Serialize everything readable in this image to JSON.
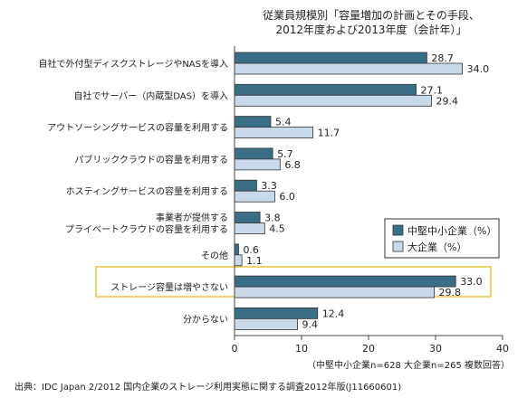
{
  "chart_data": {
    "type": "bar",
    "orientation": "horizontal",
    "title_lines": [
      "従業員規模別「容量増加の計画とその手段、",
      "2012年度および2013年度（会計年）」"
    ],
    "categories": [
      [
        "自社で外付型ディスクストレージやNASを導入"
      ],
      [
        "自社でサーバー（内蔵型DAS）を導入"
      ],
      [
        "アウトソーシングサービスの容量を利用する"
      ],
      [
        "パブリッククラウドの容量を利用する"
      ],
      [
        "ホスティングサービスの容量を利用する"
      ],
      [
        "事業者が提供する",
        "プライベートクラウドの容量を利用する"
      ],
      [
        "その他"
      ],
      [
        "ストレージ容量は増やさない"
      ],
      [
        "分からない"
      ]
    ],
    "series": [
      {
        "name": "中堅中小企業（%）",
        "color": "#3a6d86",
        "values": [
          28.7,
          27.1,
          5.4,
          5.7,
          3.3,
          3.8,
          0.6,
          33.0,
          12.4
        ]
      },
      {
        "name": "大企業（%）",
        "color": "#c8d9ea",
        "values": [
          34.0,
          29.4,
          11.7,
          6.8,
          6.0,
          4.5,
          1.1,
          29.8,
          9.4
        ]
      }
    ],
    "value_labels": [
      [
        "28.7",
        "27.1",
        "5.4",
        "5.7",
        "3.3",
        "3.8",
        "0.6",
        "33.0",
        "12.4"
      ],
      [
        "34.0",
        "29.4",
        "11.7",
        "6.8",
        "6.0",
        "4.5",
        "1.1",
        "29.8",
        "9.4"
      ]
    ],
    "x_ticks": [
      "0",
      "10",
      "20",
      "30",
      "40"
    ],
    "xlim": [
      0,
      40
    ],
    "highlight_category_index": 7,
    "highlight_color": "#e8c440",
    "legend_position": "lower-right",
    "grid": false
  },
  "note": "（中堅中小企業n=628 大企業n=265 複数回答）",
  "source": "出典：IDC Japan 2/2012 国内企業のストレージ利用実態に関する調査2012年版(J11660601)"
}
